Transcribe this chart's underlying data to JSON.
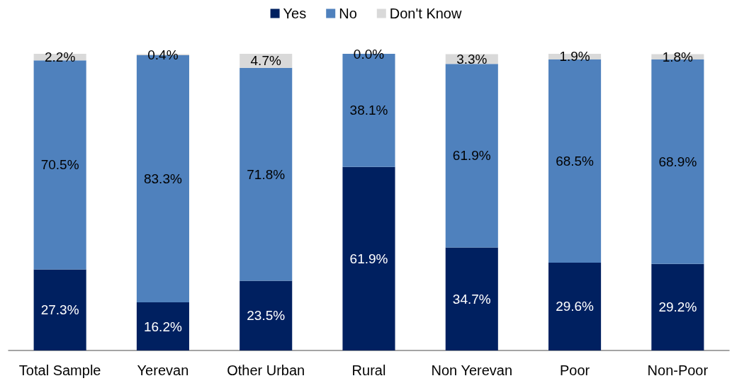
{
  "chart_data": {
    "type": "bar",
    "stacked": true,
    "legend": "top",
    "categories": [
      "Total Sample",
      "Yerevan",
      "Other Urban",
      "Rural",
      "Non Yerevan",
      "Poor",
      "Non-Poor"
    ],
    "series": [
      {
        "name": "Yes",
        "color": "#002060",
        "values": [
          27.3,
          16.2,
          23.5,
          61.9,
          34.7,
          29.6,
          29.2
        ],
        "value_labels": [
          "27.3%",
          "16.2%",
          "23.5%",
          "61.9%",
          "34.7%",
          "29.6%",
          "29.2%"
        ]
      },
      {
        "name": "No",
        "color": "#4f81bd",
        "values": [
          70.5,
          83.3,
          71.8,
          38.1,
          61.9,
          68.5,
          68.9
        ],
        "value_labels": [
          "70.5%",
          "83.3%",
          "71.8%",
          "38.1%",
          "61.9%",
          "68.5%",
          "68.9%"
        ]
      },
      {
        "name": "Don't Know",
        "color": "#d9d9d9",
        "values": [
          2.2,
          0.4,
          4.7,
          0.0,
          3.3,
          1.9,
          1.8
        ],
        "value_labels": [
          "2.2%",
          "0.4%",
          "4.7%",
          "0.0%",
          "3.3%",
          "1.9%",
          "1.8%"
        ]
      }
    ]
  }
}
